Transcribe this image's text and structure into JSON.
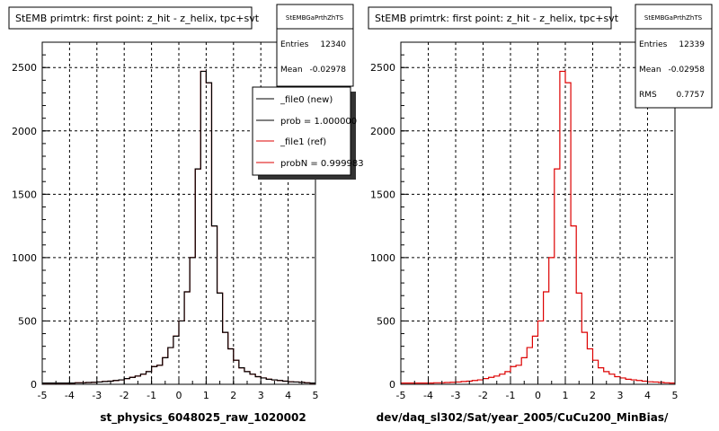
{
  "colors": {
    "background": "#ffffff",
    "axis": "#000000",
    "grid": "#000000",
    "hist_new": "#000000",
    "hist_ref": "#dd0000"
  },
  "chart_data": [
    {
      "type": "histogram",
      "title": "StEMB primtrk: first point: z_hit - z_helix, tpc+svt",
      "xlabel": "st_physics_6048025_raw_1020002",
      "ylabel": "",
      "xlim": [
        -5,
        5
      ],
      "ylim": [
        0,
        2700
      ],
      "xticks": [
        "-5",
        "-4",
        "-3",
        "-2",
        "-1",
        "0",
        "1",
        "2",
        "3",
        "4",
        "5"
      ],
      "yticks": [
        "0",
        "500",
        "1000",
        "1500",
        "2000",
        "2500"
      ],
      "grid": true,
      "stats": {
        "name": "StEMBGaPrthZhTS",
        "rows": [
          {
            "label": "Entries",
            "value": "12340"
          },
          {
            "label": "Mean",
            "value": "-0.02978"
          }
        ]
      },
      "legend": {
        "position": "top-right",
        "entries": [
          {
            "label": "_file0 (new)",
            "color": "#000000"
          },
          {
            "label": "prob = 1.000000",
            "color": "#000000"
          },
          {
            "label": "_file1 (ref)",
            "color": "#dd0000"
          },
          {
            "label": "probN = 0.999983",
            "color": "#dd0000"
          }
        ]
      },
      "bin_edges": [
        -5,
        5
      ],
      "series": [
        {
          "color": "#dd0000",
          "values": [
            10,
            10,
            10,
            10,
            10,
            10,
            12,
            12,
            14,
            16,
            18,
            22,
            25,
            30,
            35,
            45,
            55,
            65,
            80,
            100,
            140,
            150,
            210,
            290,
            380,
            500,
            730,
            1000,
            1700,
            2470,
            2380,
            1250,
            720,
            410,
            280,
            190,
            130,
            100,
            80,
            60,
            50,
            40,
            35,
            30,
            25,
            20,
            18,
            15,
            12,
            10
          ]
        },
        {
          "color": "#000000",
          "values": [
            10,
            10,
            10,
            10,
            10,
            10,
            12,
            12,
            14,
            16,
            18,
            22,
            25,
            30,
            35,
            45,
            55,
            65,
            80,
            100,
            140,
            150,
            210,
            290,
            380,
            500,
            730,
            1000,
            1700,
            2470,
            2380,
            1250,
            720,
            410,
            280,
            190,
            130,
            100,
            80,
            60,
            50,
            40,
            35,
            30,
            25,
            20,
            18,
            15,
            12,
            10
          ]
        }
      ]
    },
    {
      "type": "histogram",
      "title": "StEMB primtrk: first point: z_hit - z_helix, tpc+svt",
      "xlabel": "dev/daq_sl302/Sat/year_2005/CuCu200_MinBias/",
      "ylabel": "",
      "xlim": [
        -5,
        5
      ],
      "ylim": [
        0,
        2700
      ],
      "xticks": [
        "-5",
        "-4",
        "-3",
        "-2",
        "-1",
        "0",
        "1",
        "2",
        "3",
        "4",
        "5"
      ],
      "yticks": [
        "0",
        "500",
        "1000",
        "1500",
        "2000",
        "2500"
      ],
      "grid": true,
      "stats": {
        "name": "StEMBGaPrthZhTS",
        "rows": [
          {
            "label": "Entries",
            "value": "12339"
          },
          {
            "label": "Mean",
            "value": "-0.02958"
          },
          {
            "label": "RMS",
            "value": "0.7757"
          }
        ]
      },
      "bin_edges": [
        -5,
        5
      ],
      "series": [
        {
          "color": "#dd0000",
          "values": [
            10,
            10,
            10,
            10,
            10,
            10,
            12,
            12,
            14,
            16,
            18,
            22,
            25,
            30,
            35,
            45,
            55,
            65,
            80,
            100,
            140,
            150,
            210,
            290,
            380,
            500,
            730,
            1000,
            1700,
            2470,
            2380,
            1250,
            720,
            410,
            280,
            190,
            130,
            100,
            80,
            60,
            50,
            40,
            35,
            30,
            25,
            20,
            18,
            15,
            12,
            10
          ]
        }
      ]
    }
  ]
}
